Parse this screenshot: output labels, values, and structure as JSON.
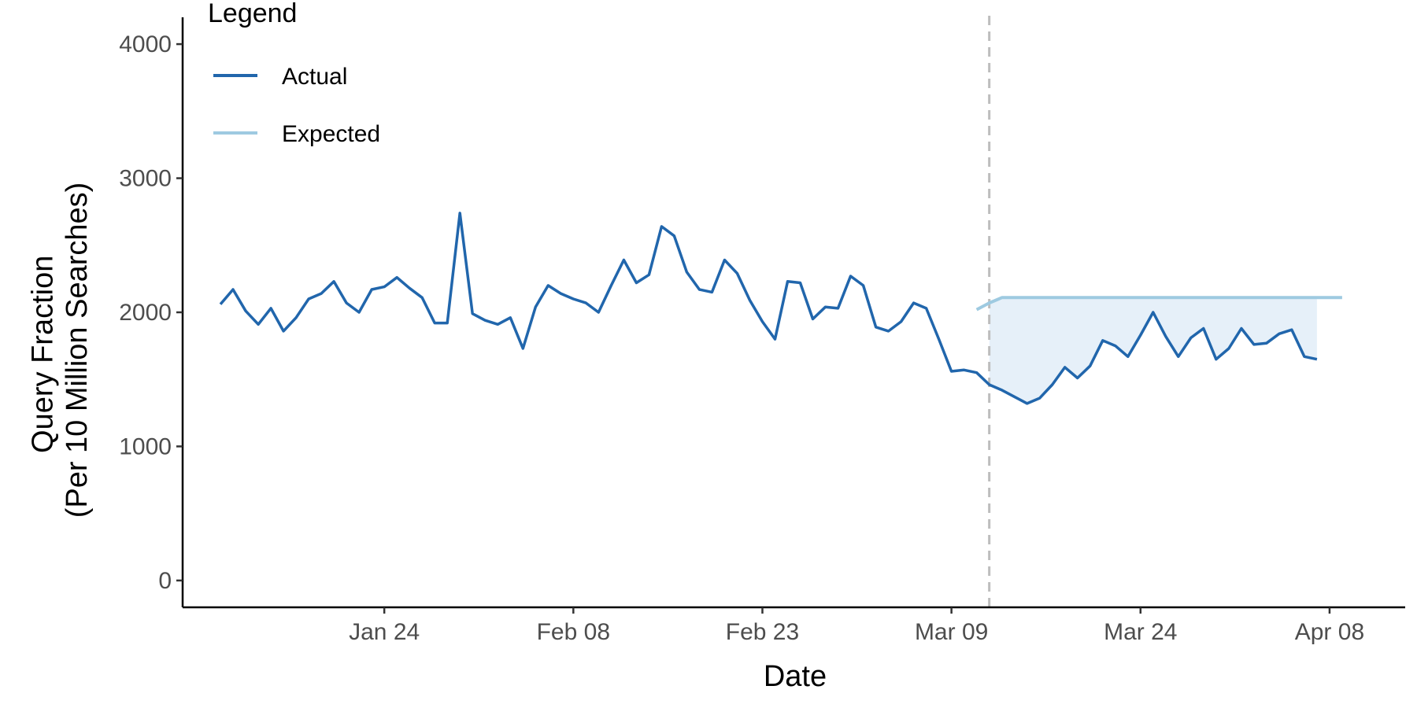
{
  "chart_data": {
    "type": "line",
    "title": "",
    "xlabel": "Date",
    "ylabel": [
      "Query Fraction",
      "(Per 10 Million Searches)"
    ],
    "x_ticks": [
      "Jan 24",
      "Feb 08",
      "Feb 23",
      "Mar 09",
      "Mar 24",
      "Apr 08"
    ],
    "y_ticks": [
      0,
      1000,
      2000,
      3000,
      4000
    ],
    "xlim": [
      "2020-01-08",
      "2020-04-14"
    ],
    "ylim": [
      -200,
      4200
    ],
    "grid": false,
    "legend": {
      "title": "Legend",
      "position": "top-left",
      "entries": [
        "Actual",
        "Expected"
      ]
    },
    "event_line": {
      "x": "2020-03-12",
      "style": "dashed",
      "color": "#bdbdbd"
    },
    "shaded_region": {
      "between": [
        "Expected",
        "Actual"
      ],
      "from": "2020-03-12",
      "color": "#deebf7"
    },
    "series": [
      {
        "name": "Actual",
        "color": "#2166ac",
        "start_date": "2020-01-11",
        "values": [
          2060,
          2170,
          2010,
          1910,
          2030,
          1860,
          1960,
          2100,
          2140,
          2230,
          2070,
          2000,
          2170,
          2190,
          2260,
          2180,
          2110,
          1920,
          1920,
          2740,
          1990,
          1940,
          1910,
          1960,
          1730,
          2040,
          2200,
          2140,
          2100,
          2070,
          2000,
          2200,
          2390,
          2220,
          2280,
          2640,
          2570,
          2300,
          2170,
          2150,
          2390,
          2290,
          2090,
          1930,
          1800,
          2230,
          2220,
          1950,
          2040,
          2030,
          2270,
          2200,
          1890,
          1860,
          1930,
          2070,
          2030,
          1800,
          1560,
          1570,
          1550,
          1460,
          1420,
          1370,
          1320,
          1360,
          1460,
          1590,
          1510,
          1600,
          1790,
          1750,
          1670,
          1830,
          2000,
          1820,
          1670,
          1810,
          1880,
          1650,
          1730,
          1880,
          1760,
          1770,
          1840,
          1870,
          1670,
          1650
        ]
      },
      {
        "name": "Expected",
        "color": "#9ecae1",
        "dates": [
          "2020-03-11",
          "2020-03-12",
          "2020-03-13",
          "2020-04-09"
        ],
        "values": [
          2020,
          2070,
          2110,
          2110
        ]
      }
    ]
  }
}
